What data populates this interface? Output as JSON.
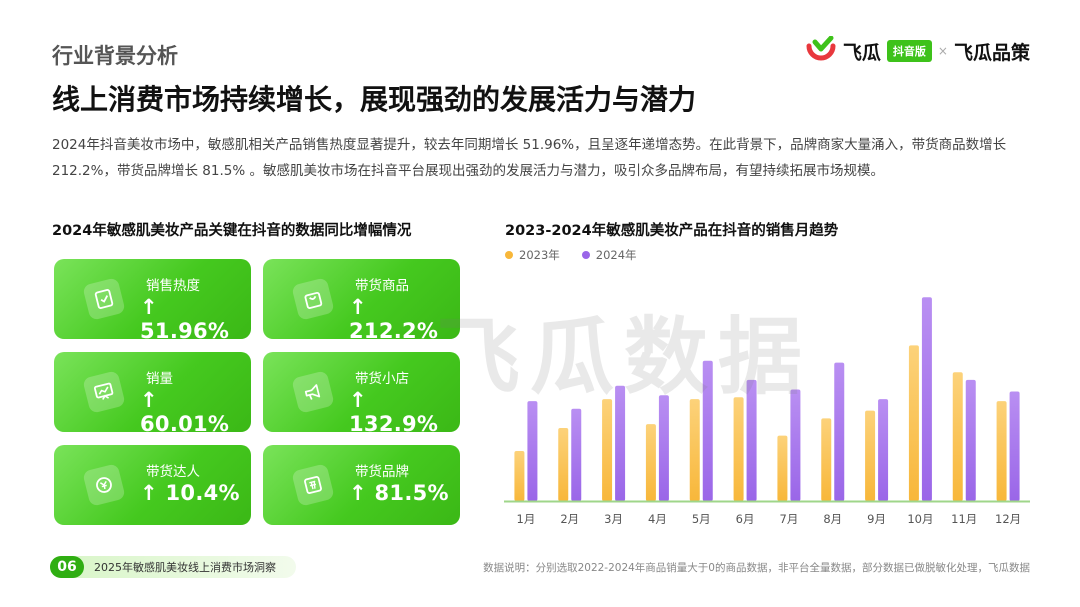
{
  "header": {
    "section_label": "行业背景分析",
    "headline": "线上消费市场持续增长，展现强劲的发展活力与潜力",
    "intro": "2024年抖音美妆市场中，敏感肌相关产品销售热度显著提升，较去年同期增长 51.96%，且呈逐年递增态势。在此背景下，品牌商家大量涌入，带货商品数增长 212.2%，带货品牌增长 81.5% 。敏感肌美妆市场在抖音平台展现出强劲的发展活力与潜力，吸引众多品牌布局，有望持续拓展市场规模。"
  },
  "brand": {
    "name": "飞瓜",
    "badge": "抖音版",
    "separator": "×",
    "partner": "飞瓜品策",
    "accent": "#3ec21a",
    "logo_red": "#e8383d"
  },
  "watermark": "飞瓜数据",
  "left_panel": {
    "title": "2024年敏感肌美妆产品关键在抖音的数据同比增幅情况",
    "cards": [
      {
        "label": "销售热度",
        "value": "↑ 51.96%",
        "icon": "clipboard-check-icon"
      },
      {
        "label": "带货商品",
        "value": "↑ 212.2%",
        "icon": "shopping-bag-icon"
      },
      {
        "label": "销量",
        "value": "↑ 60.01%",
        "icon": "trend-chart-icon"
      },
      {
        "label": "带货小店",
        "value": "↑ 132.9%",
        "icon": "megaphone-icon"
      },
      {
        "label": "带货达人",
        "value": "↑ 10.4%",
        "icon": "coin-icon"
      },
      {
        "label": "带货品牌",
        "value": "↑ 81.5%",
        "icon": "tag-icon"
      }
    ]
  },
  "right_panel": {
    "title": "2023-2024年敏感肌美妆产品在抖音的销售月趋势"
  },
  "chart_data": {
    "type": "bar",
    "categories": [
      "1月",
      "2月",
      "3月",
      "4月",
      "5月",
      "6月",
      "7月",
      "8月",
      "9月",
      "10月",
      "11月",
      "12月"
    ],
    "series": [
      {
        "name": "2023年",
        "color": "#f8b73a",
        "values": [
          26,
          38,
          53,
          40,
          53,
          54,
          34,
          43,
          47,
          81,
          67,
          52
        ]
      },
      {
        "name": "2024年",
        "color": "#9a66e8",
        "values": [
          52,
          48,
          60,
          55,
          73,
          63,
          58,
          72,
          53,
          106,
          63,
          57
        ]
      }
    ],
    "ylim": [
      0,
      115
    ],
    "grid": false,
    "legend": "top-left"
  },
  "footer": {
    "page_num": "06",
    "report_title": "2025年敏感肌美妆线上消费市场洞察",
    "note": "数据说明：分别选取2022-2024年商品销量大于0的商品数据，非平台全量数据，部分数据已做脱敏化处理，飞瓜数据"
  }
}
